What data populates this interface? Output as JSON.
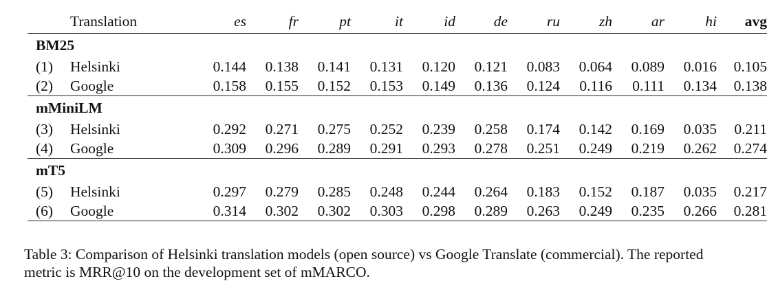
{
  "table": {
    "header": {
      "translation": "Translation",
      "languages": [
        "es",
        "fr",
        "pt",
        "it",
        "id",
        "de",
        "ru",
        "zh",
        "ar",
        "hi"
      ],
      "avg": "avg"
    },
    "groups": [
      {
        "name": "BM25",
        "rows": [
          {
            "index": "(1)",
            "name": "Helsinki",
            "values": [
              "0.144",
              "0.138",
              "0.141",
              "0.131",
              "0.120",
              "0.121",
              "0.083",
              "0.064",
              "0.089",
              "0.016",
              "0.105"
            ]
          },
          {
            "index": "(2)",
            "name": "Google",
            "values": [
              "0.158",
              "0.155",
              "0.152",
              "0.153",
              "0.149",
              "0.136",
              "0.124",
              "0.116",
              "0.111",
              "0.134",
              "0.138"
            ]
          }
        ]
      },
      {
        "name": "mMiniLM",
        "rows": [
          {
            "index": "(3)",
            "name": "Helsinki",
            "values": [
              "0.292",
              "0.271",
              "0.275",
              "0.252",
              "0.239",
              "0.258",
              "0.174",
              "0.142",
              "0.169",
              "0.035",
              "0.211"
            ]
          },
          {
            "index": "(4)",
            "name": "Google",
            "values": [
              "0.309",
              "0.296",
              "0.289",
              "0.291",
              "0.293",
              "0.278",
              "0.251",
              "0.249",
              "0.219",
              "0.262",
              "0.274"
            ]
          }
        ]
      },
      {
        "name": "mT5",
        "rows": [
          {
            "index": "(5)",
            "name": "Helsinki",
            "values": [
              "0.297",
              "0.279",
              "0.285",
              "0.248",
              "0.244",
              "0.264",
              "0.183",
              "0.152",
              "0.187",
              "0.035",
              "0.217"
            ]
          },
          {
            "index": "(6)",
            "name": "Google",
            "values": [
              "0.314",
              "0.302",
              "0.302",
              "0.303",
              "0.298",
              "0.289",
              "0.263",
              "0.249",
              "0.235",
              "0.266",
              "0.281"
            ]
          }
        ]
      }
    ]
  },
  "caption": "Table 3: Comparison of Helsinki translation models (open source) vs Google Translate (commercial). The reported metric is MRR@10 on the development set of mMARCO."
}
